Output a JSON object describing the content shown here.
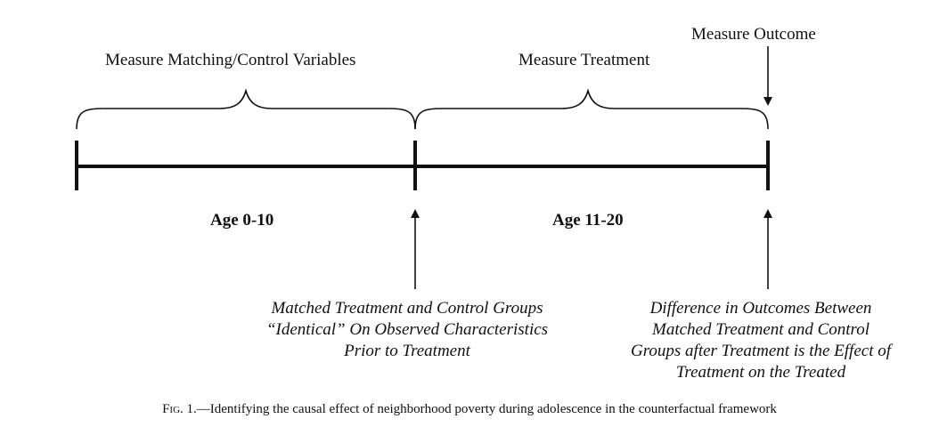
{
  "labels": {
    "measure_matching": "Measure Matching/Control Variables",
    "measure_treatment": "Measure Treatment",
    "measure_outcome": "Measure Outcome",
    "age_0_10": "Age 0-10",
    "age_11_20": "Age 11-20"
  },
  "notes": {
    "matched_groups": [
      "Matched Treatment and Control Groups",
      "“Identical” On Observed Characteristics",
      "Prior to Treatment"
    ],
    "difference_outcomes": [
      "Difference in Outcomes Between",
      "Matched Treatment and Control",
      "Groups after Treatment is the Effect of",
      "Treatment on the Treated"
    ]
  },
  "caption": {
    "fig_label": "Fig. 1.",
    "text": "—Identifying the causal effect of neighborhood poverty during adolescence in the counterfactual framework"
  }
}
